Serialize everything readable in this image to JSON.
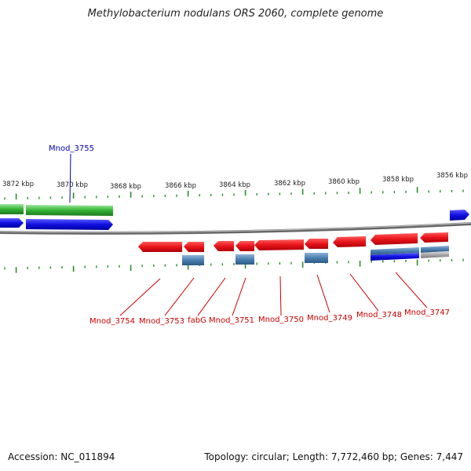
{
  "title": "Methylobacterium nodulans ORS 2060, complete genome",
  "colors": {
    "backbone": "#7a7a7a",
    "tick": "#2e8b2e",
    "cds_red": "#e8141a",
    "cds_blue": "#1010e0",
    "cds_green": "#33b233",
    "rna_steel": "#4a7fb0",
    "gray_feature": "#a8a8a8",
    "label_red": "#cc0000",
    "label_blue": "#0000bb"
  },
  "scale": {
    "unit": "kbp",
    "ticks": [
      {
        "label": "3872 kbp"
      },
      {
        "label": "3870 kbp"
      },
      {
        "label": "3868 kbp"
      },
      {
        "label": "3866 kbp"
      },
      {
        "label": "3864 kbp"
      },
      {
        "label": "3862 kbp"
      },
      {
        "label": "3860 kbp"
      },
      {
        "label": "3858 kbp"
      },
      {
        "label": "3856 kbp"
      }
    ]
  },
  "gene_labels_top": [
    {
      "name": "Mnod_3755"
    }
  ],
  "gene_labels_bottom": [
    {
      "name": "Mnod_3754"
    },
    {
      "name": "Mnod_3753"
    },
    {
      "name": "fabG"
    },
    {
      "name": "Mnod_3751"
    },
    {
      "name": "Mnod_3750"
    },
    {
      "name": "Mnod_3749"
    },
    {
      "name": "Mnod_3748"
    },
    {
      "name": "Mnod_3747"
    }
  ],
  "footer": {
    "accession": "Accession: NC_011894",
    "summary": "Topology: circular; Length: 7,772,460 bp; Genes: 7,447"
  }
}
